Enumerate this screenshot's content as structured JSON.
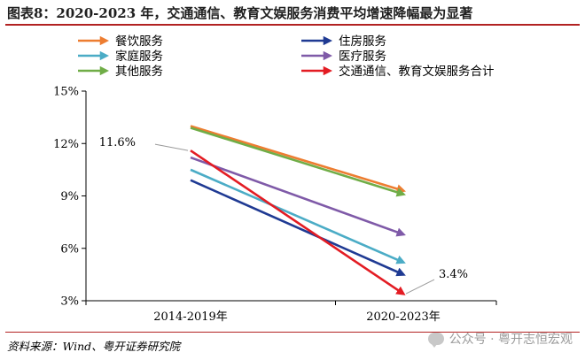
{
  "header": {
    "title": "图表8：2020-2023 年，交通通信、教育文娱服务消费平均增速降幅最为显著"
  },
  "footer": {
    "source": "资料来源：Wind、粤开证券研究院",
    "watermark": "公众号 · 粤开志恒宏观"
  },
  "chart_data": {
    "type": "line",
    "title": "",
    "xlabel": "",
    "ylabel": "",
    "categories": [
      "2014-2019年",
      "2020-2023年"
    ],
    "ylim": [
      3,
      15
    ],
    "yticks": [
      3,
      6,
      9,
      12,
      15
    ],
    "ytick_labels": [
      "3%",
      "6%",
      "9%",
      "12%",
      "15%"
    ],
    "grid": false,
    "legend_position": "top",
    "series": [
      {
        "name": "餐饮服务",
        "values": [
          13.0,
          9.3
        ],
        "color": "#ed7d31"
      },
      {
        "name": "家庭服务",
        "values": [
          10.5,
          5.2
        ],
        "color": "#4bacc6"
      },
      {
        "name": "其他服务",
        "values": [
          12.9,
          9.1
        ],
        "color": "#70ad47"
      },
      {
        "name": "住房服务",
        "values": [
          9.9,
          4.5
        ],
        "color": "#1f3a93"
      },
      {
        "name": "医疗服务",
        "values": [
          11.2,
          6.8
        ],
        "color": "#7f5aa8"
      },
      {
        "name": "交通通信、教育文娱服务合计",
        "values": [
          11.6,
          3.4
        ],
        "color": "#e31c23"
      }
    ],
    "annotations": [
      {
        "text": "11.6%",
        "series": 5,
        "point": 0
      },
      {
        "text": "3.4%",
        "series": 5,
        "point": 1
      }
    ]
  }
}
